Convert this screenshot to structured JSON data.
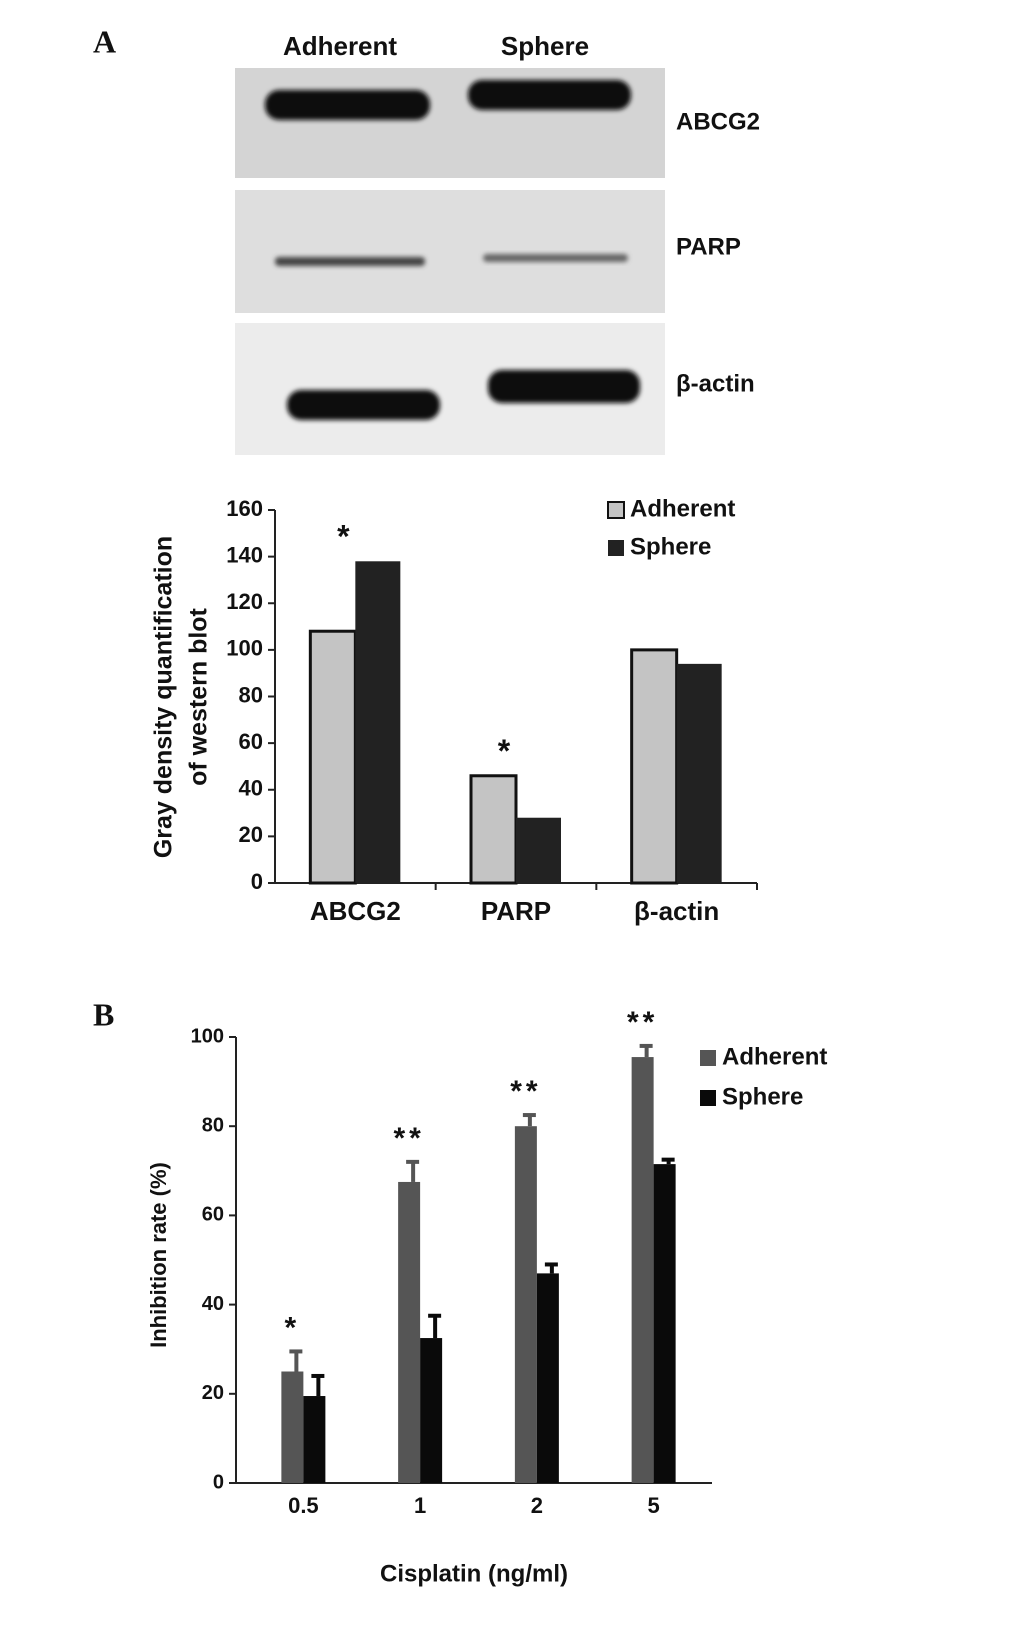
{
  "panel_a": {
    "label": "A",
    "blot": {
      "lanes": [
        "Adherent",
        "Sphere"
      ],
      "proteins": [
        "ABCG2",
        "PARP",
        "β-actin"
      ]
    }
  },
  "panel_b": {
    "label": "B"
  },
  "chart_data": [
    {
      "type": "bar",
      "ylabel": [
        "Gray density quantification",
        "of western blot"
      ],
      "categories": [
        "ABCG2",
        "PARP",
        "β-actin"
      ],
      "series": [
        {
          "name": "Adherent",
          "color": "#c4c4c4",
          "values": [
            108,
            46,
            100
          ]
        },
        {
          "name": "Sphere",
          "color": "#222222",
          "values": [
            138,
            28,
            94
          ]
        }
      ],
      "significance": [
        "*",
        "*",
        null
      ],
      "ylim": [
        0,
        160
      ],
      "yticks": [
        0,
        20,
        40,
        60,
        80,
        100,
        120,
        140,
        160
      ],
      "legend": "top-right"
    },
    {
      "type": "bar",
      "ylabel": "Inhibition rate (%)",
      "xlabel": "Cisplatin (ng/ml)",
      "categories": [
        "0.5",
        "1",
        "2",
        "5"
      ],
      "series": [
        {
          "name": "Adherent",
          "color": "#555555",
          "values": [
            25,
            67.5,
            80,
            95.5
          ],
          "errors": [
            4.5,
            4.5,
            2.5,
            2.5
          ]
        },
        {
          "name": "Sphere",
          "color": "#0a0a0a",
          "values": [
            19.5,
            32.5,
            47,
            71.5
          ],
          "errors": [
            4.5,
            5,
            2,
            1
          ]
        }
      ],
      "significance": [
        "*",
        "**",
        "**",
        "**"
      ],
      "ylim": [
        0,
        100
      ],
      "yticks": [
        0,
        20,
        40,
        60,
        80,
        100
      ],
      "legend": "top-right"
    }
  ]
}
